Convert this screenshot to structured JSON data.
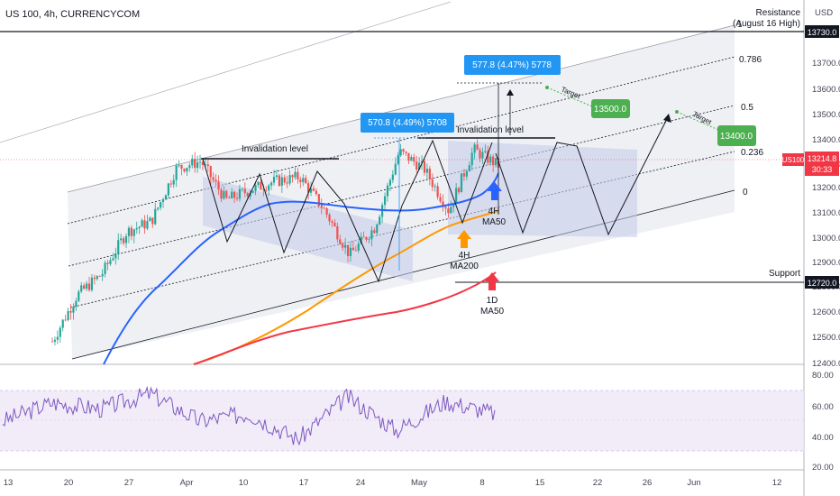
{
  "header": {
    "symbol_line": "US 100, 4h, CURRENCYCOM"
  },
  "price_axis": {
    "currency": "USD",
    "ticks": [
      "13700.0",
      "13600.0",
      "13500.0",
      "13400.0",
      "13300.0",
      "13200.0",
      "13100.0",
      "13000.0",
      "12900.0",
      "12800.0",
      "12600.0",
      "12500.0",
      "12400.0"
    ],
    "resistance_badge": "13730.0",
    "support_badge": "12720.0",
    "last_badge": {
      "symbol": "US100",
      "price": "13214.8",
      "countdown": "30:33"
    }
  },
  "rsi_axis": {
    "ticks": [
      "80.00",
      "60.00",
      "40.00",
      "20.00"
    ]
  },
  "time_axis": {
    "ticks": [
      "13",
      "20",
      "27",
      "Apr",
      "10",
      "17",
      "24",
      "May",
      "8",
      "15",
      "22",
      "26",
      "Jun",
      "12"
    ]
  },
  "annotations": {
    "resistance": "Resistance",
    "resistance_sub": "(August 16 High)",
    "support": "Support",
    "invalidation_1": "Invalidation level",
    "invalidation_2": "Invalidation level",
    "measure_1": "570.8 (4.49%) 5708",
    "measure_2": "577.8 (4.47%) 5778",
    "target_1_label": "Target",
    "target_1_value": "13500.0",
    "target_2_label": "Target",
    "target_2_value": "13400.0",
    "ma_4h_50": [
      "4H",
      "MA50"
    ],
    "ma_4h_200": [
      "4H",
      "MA200"
    ],
    "ma_1d_50": [
      "1D",
      "MA50"
    ]
  },
  "fib_levels": [
    "1",
    "0.786",
    "0.5",
    "0.236",
    "0"
  ],
  "colors": {
    "candle_up": "#26a69a",
    "candle_down": "#ef5350",
    "ma50_4h": "#2962ff",
    "ma200_4h": "#ff9800",
    "ma50_1d": "#f23645",
    "rsi": "#7e57c2",
    "rsi_band": "#ede7f6",
    "measure_blue": "#2196f3",
    "target_green": "#4caf50",
    "channel_fill": "#e0e3eb",
    "box_fill": "#c5cae9"
  },
  "chart_data": [
    {
      "type": "line",
      "title": "US 100, 4h, CURRENCYCOM",
      "ylabel": "USD",
      "ylim": [
        12380,
        13800
      ],
      "x_ticks": [
        "13",
        "20",
        "27",
        "Apr",
        "10",
        "17",
        "24",
        "May",
        "8",
        "15",
        "22",
        "26",
        "Jun",
        "12"
      ],
      "horizontal_levels": [
        {
          "name": "Resistance (August 16 High)",
          "value": 13730.0
        },
        {
          "name": "Support",
          "value": 12720.0
        }
      ],
      "last_price": 13214.8,
      "price_path": [
        {
          "x": "13 Mar",
          "y": 12380
        },
        {
          "x": "16 Mar",
          "y": 12600
        },
        {
          "x": "20 Mar",
          "y": 12700
        },
        {
          "x": "24 Mar",
          "y": 12900
        },
        {
          "x": "28 Mar",
          "y": 12950
        },
        {
          "x": "31 Mar",
          "y": 13200
        },
        {
          "x": "3 Apr",
          "y": 13235
        },
        {
          "x": "7 Apr",
          "y": 13050
        },
        {
          "x": "11 Apr",
          "y": 13100
        },
        {
          "x": "14 Apr",
          "y": 13140
        },
        {
          "x": "18 Apr",
          "y": 13160
        },
        {
          "x": "21 Apr",
          "y": 13000
        },
        {
          "x": "25 Apr",
          "y": 12790
        },
        {
          "x": "27 Apr",
          "y": 12920
        },
        {
          "x": "1 May",
          "y": 13280
        },
        {
          "x": "3 May",
          "y": 13200
        },
        {
          "x": "5 May",
          "y": 13000
        },
        {
          "x": "8 May",
          "y": 13290
        },
        {
          "x": "9 May",
          "y": 13215
        }
      ],
      "projection_path": [
        {
          "x": "9 May",
          "y": 13250
        },
        {
          "x": "12 May",
          "y": 12940
        },
        {
          "x": "16 May",
          "y": 13300
        },
        {
          "x": "20 May",
          "y": 12920
        },
        {
          "x": "25 May",
          "y": 13380
        }
      ],
      "series": [
        {
          "name": "4H MA50",
          "values": [
            {
              "x": "13 Mar",
              "y": 12380
            },
            {
              "x": "31 Mar",
              "y": 12900
            },
            {
              "x": "10 Apr",
              "y": 13050
            },
            {
              "x": "24 Apr",
              "y": 13010
            },
            {
              "x": "5 May",
              "y": 13020
            },
            {
              "x": "9 May",
              "y": 13130
            }
          ]
        },
        {
          "name": "4H MA200",
          "values": [
            {
              "x": "29 Mar",
              "y": 12380
            },
            {
              "x": "24 Apr",
              "y": 12720
            },
            {
              "x": "5 May",
              "y": 12950
            },
            {
              "x": "9 May",
              "y": 13000
            }
          ]
        },
        {
          "name": "1D MA50",
          "values": [
            {
              "x": "29 Mar",
              "y": 12380
            },
            {
              "x": "17 Apr",
              "y": 12520
            },
            {
              "x": "1 May",
              "y": 12600
            },
            {
              "x": "9 May",
              "y": 12750
            }
          ]
        }
      ]
    },
    {
      "type": "line",
      "title": "",
      "ylim": [
        20,
        80
      ],
      "band": [
        30,
        70
      ],
      "series": [
        {
          "name": "",
          "values": [
            {
              "x": "13 Mar",
              "y": 50
            },
            {
              "x": "20 Mar",
              "y": 62
            },
            {
              "x": "27 Mar",
              "y": 58
            },
            {
              "x": "3 Apr",
              "y": 68
            },
            {
              "x": "10 Apr",
              "y": 50
            },
            {
              "x": "17 Apr",
              "y": 55
            },
            {
              "x": "24 Apr",
              "y": 38
            },
            {
              "x": "1 May",
              "y": 66
            },
            {
              "x": "5 May",
              "y": 44
            },
            {
              "x": "8 May",
              "y": 63
            },
            {
              "x": "9 May",
              "y": 55
            }
          ]
        }
      ]
    }
  ]
}
